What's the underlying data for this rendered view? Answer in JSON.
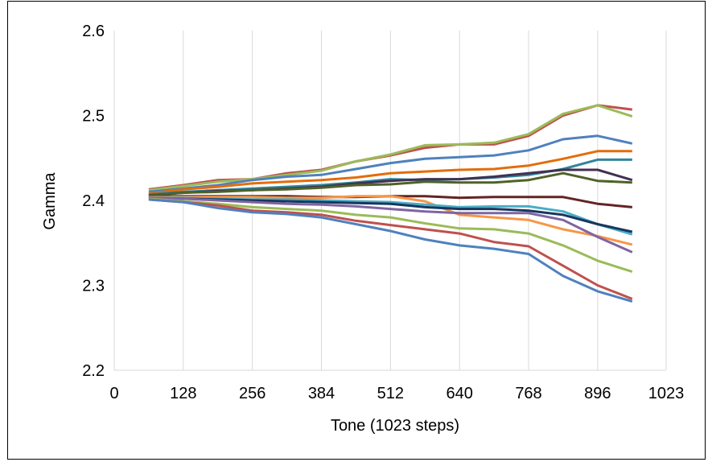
{
  "chart_data": {
    "type": "line",
    "title": "",
    "xlabel": "Tone (1023 steps)",
    "ylabel": "Gamma",
    "xlim": [
      0,
      1023
    ],
    "ylim": [
      2.2,
      2.6
    ],
    "x_ticks": [
      0,
      128,
      256,
      384,
      512,
      640,
      768,
      896,
      1023
    ],
    "x_tick_labels": [
      "0",
      "128",
      "256",
      "384",
      "512",
      "640",
      "768",
      "896",
      "1023"
    ],
    "y_ticks": [
      2.2,
      2.3,
      2.4,
      2.5,
      2.6
    ],
    "y_tick_labels": [
      "2.2",
      "2.3",
      "2.4",
      "2.5",
      "2.6"
    ],
    "grid": "vertical",
    "legend": "none",
    "x": [
      64,
      128,
      192,
      256,
      320,
      384,
      448,
      512,
      576,
      640,
      704,
      768,
      832,
      896,
      960
    ],
    "series": [
      {
        "color": "#c0504d",
        "values": [
          2.413,
          2.418,
          2.424,
          2.425,
          2.432,
          2.436,
          2.446,
          2.453,
          2.462,
          2.466,
          2.466,
          2.476,
          2.5,
          2.512,
          2.507
        ]
      },
      {
        "color": "#9bbb59",
        "values": [
          2.412,
          2.417,
          2.422,
          2.425,
          2.43,
          2.435,
          2.446,
          2.454,
          2.465,
          2.466,
          2.468,
          2.478,
          2.502,
          2.512,
          2.499
        ]
      },
      {
        "color": "#4f81bd",
        "values": [
          2.41,
          2.414,
          2.418,
          2.424,
          2.428,
          2.43,
          2.437,
          2.444,
          2.449,
          2.451,
          2.453,
          2.459,
          2.472,
          2.476,
          2.467
        ]
      },
      {
        "color": "#e46c0a",
        "values": [
          2.408,
          2.413,
          2.416,
          2.42,
          2.422,
          2.424,
          2.427,
          2.432,
          2.434,
          2.436,
          2.437,
          2.441,
          2.449,
          2.458,
          2.458
        ]
      },
      {
        "color": "#31859c",
        "values": [
          2.407,
          2.41,
          2.412,
          2.414,
          2.416,
          2.418,
          2.421,
          2.425,
          2.424,
          2.425,
          2.427,
          2.43,
          2.437,
          2.448,
          2.448
        ]
      },
      {
        "color": "#403152",
        "values": [
          2.406,
          2.409,
          2.411,
          2.412,
          2.414,
          2.416,
          2.42,
          2.423,
          2.425,
          2.425,
          2.428,
          2.432,
          2.436,
          2.436,
          2.424
        ]
      },
      {
        "color": "#4f6228",
        "values": [
          2.406,
          2.409,
          2.41,
          2.412,
          2.413,
          2.415,
          2.418,
          2.419,
          2.422,
          2.421,
          2.421,
          2.424,
          2.432,
          2.423,
          2.421
        ]
      },
      {
        "color": "#632423",
        "values": [
          2.405,
          2.405,
          2.405,
          2.405,
          2.405,
          2.404,
          2.404,
          2.405,
          2.405,
          2.403,
          2.404,
          2.404,
          2.404,
          2.396,
          2.392
        ]
      },
      {
        "color": "#f79646",
        "values": [
          2.404,
          2.404,
          2.404,
          2.404,
          2.403,
          2.403,
          2.405,
          2.405,
          2.399,
          2.383,
          2.38,
          2.377,
          2.366,
          2.358,
          2.348
        ]
      },
      {
        "color": "#4bacc6",
        "values": [
          2.403,
          2.403,
          2.402,
          2.401,
          2.401,
          2.4,
          2.399,
          2.398,
          2.395,
          2.392,
          2.393,
          2.393,
          2.387,
          2.372,
          2.36
        ]
      },
      {
        "color": "#17375e",
        "values": [
          2.403,
          2.402,
          2.401,
          2.4,
          2.399,
          2.398,
          2.397,
          2.396,
          2.392,
          2.39,
          2.39,
          2.388,
          2.383,
          2.372,
          2.363
        ]
      },
      {
        "color": "#8064a2",
        "values": [
          2.403,
          2.402,
          2.4,
          2.398,
          2.396,
          2.395,
          2.393,
          2.39,
          2.387,
          2.385,
          2.385,
          2.385,
          2.377,
          2.357,
          2.339
        ]
      },
      {
        "color": "#9bbb59",
        "values": [
          2.402,
          2.399,
          2.396,
          2.392,
          2.39,
          2.388,
          2.383,
          2.38,
          2.373,
          2.367,
          2.366,
          2.361,
          2.347,
          2.329,
          2.316
        ]
      },
      {
        "color": "#c0504d",
        "values": [
          2.401,
          2.398,
          2.394,
          2.388,
          2.386,
          2.383,
          2.376,
          2.371,
          2.366,
          2.361,
          2.351,
          2.346,
          2.323,
          2.3,
          2.284
        ]
      },
      {
        "color": "#4f81bd",
        "values": [
          2.401,
          2.398,
          2.391,
          2.386,
          2.384,
          2.38,
          2.372,
          2.364,
          2.354,
          2.347,
          2.343,
          2.337,
          2.311,
          2.293,
          2.281
        ]
      }
    ]
  }
}
